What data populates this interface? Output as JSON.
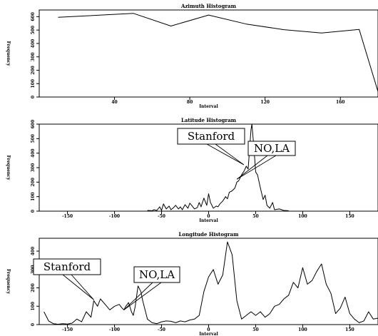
{
  "chart_data": [
    {
      "type": "line",
      "title": "Azimuth Histogram",
      "xlabel": "Interval",
      "ylabel": "Frequency",
      "xlim": [
        0,
        180
      ],
      "ylim": [
        0,
        650
      ],
      "xticks": [
        40,
        80,
        120,
        160
      ],
      "yticks": [
        0,
        100,
        200,
        300,
        400,
        500,
        600
      ],
      "x": [
        10,
        50,
        70,
        90,
        110,
        130,
        150,
        170,
        180
      ],
      "values": [
        595,
        625,
        530,
        612,
        545,
        503,
        478,
        505,
        40
      ],
      "annotations": []
    },
    {
      "type": "line",
      "title": "Latitude Histogram",
      "xlabel": "Interval",
      "ylabel": "Frequency",
      "xlim": [
        -180,
        180
      ],
      "ylim": [
        0,
        600
      ],
      "xticks": [
        -150,
        -100,
        -50,
        0,
        50,
        100,
        150
      ],
      "yticks": [
        0,
        100,
        200,
        300,
        400,
        500,
        600
      ],
      "x": [
        -65,
        -60,
        -58,
        -55,
        -52,
        -50,
        -48,
        -45,
        -42,
        -40,
        -38,
        -35,
        -32,
        -30,
        -28,
        -25,
        -22,
        -20,
        -18,
        -15,
        -12,
        -10,
        -8,
        -5,
        -2,
        0,
        2,
        5,
        8,
        10,
        12,
        15,
        18,
        20,
        22,
        25,
        28,
        30,
        32,
        35,
        38,
        40,
        42,
        45,
        46,
        48,
        50,
        52,
        55,
        58,
        60,
        62,
        65,
        68,
        70,
        75,
        80,
        85
      ],
      "values": [
        5,
        3,
        10,
        5,
        30,
        5,
        50,
        15,
        35,
        10,
        20,
        40,
        15,
        30,
        10,
        45,
        20,
        55,
        40,
        15,
        25,
        60,
        30,
        90,
        40,
        120,
        60,
        20,
        35,
        30,
        50,
        70,
        100,
        85,
        130,
        140,
        160,
        200,
        210,
        250,
        280,
        310,
        290,
        560,
        600,
        450,
        270,
        250,
        160,
        80,
        110,
        40,
        20,
        60,
        10,
        15,
        5,
        3
      ],
      "annotations": [
        {
          "text": "Stanford",
          "x": 37.4,
          "y": 320
        },
        {
          "text": "NO,LA",
          "x": 30,
          "y": 220
        }
      ]
    },
    {
      "type": "line",
      "title": "Longitude Histogram",
      "xlabel": "Interval",
      "ylabel": "Frequency",
      "xlim": [
        -180,
        180
      ],
      "ylim": [
        0,
        470
      ],
      "xticks": [
        -150,
        -100,
        -50,
        0,
        50,
        100,
        150
      ],
      "yticks": [
        0,
        100,
        200,
        300,
        400
      ],
      "x": [
        -175,
        -170,
        -165,
        -160,
        -155,
        -150,
        -145,
        -140,
        -135,
        -130,
        -125,
        -122,
        -118,
        -115,
        -110,
        -105,
        -100,
        -95,
        -92,
        -90,
        -88,
        -85,
        -82,
        -80,
        -78,
        -75,
        -72,
        -70,
        -65,
        -60,
        -55,
        -50,
        -45,
        -40,
        -35,
        -30,
        -25,
        -20,
        -15,
        -10,
        -5,
        0,
        5,
        10,
        15,
        20,
        25,
        30,
        35,
        40,
        45,
        50,
        55,
        60,
        65,
        70,
        75,
        80,
        85,
        90,
        95,
        100,
        105,
        110,
        115,
        120,
        125,
        130,
        135,
        140,
        145,
        150,
        155,
        160,
        165,
        170,
        175,
        180
      ],
      "values": [
        70,
        20,
        5,
        2,
        5,
        3,
        8,
        30,
        15,
        70,
        40,
        130,
        100,
        140,
        110,
        80,
        100,
        110,
        90,
        80,
        100,
        120,
        70,
        50,
        100,
        210,
        180,
        130,
        30,
        10,
        5,
        15,
        20,
        18,
        10,
        20,
        15,
        25,
        30,
        50,
        180,
        260,
        300,
        220,
        270,
        450,
        380,
        130,
        30,
        50,
        70,
        50,
        70,
        40,
        60,
        100,
        110,
        140,
        160,
        230,
        200,
        310,
        220,
        240,
        290,
        330,
        220,
        170,
        60,
        90,
        150,
        60,
        30,
        10,
        20,
        70,
        30,
        35
      ],
      "annotations": [
        {
          "text": "Stanford",
          "x": -122,
          "y": 135
        },
        {
          "text": "NO,LA",
          "x": -90,
          "y": 80
        }
      ]
    }
  ]
}
